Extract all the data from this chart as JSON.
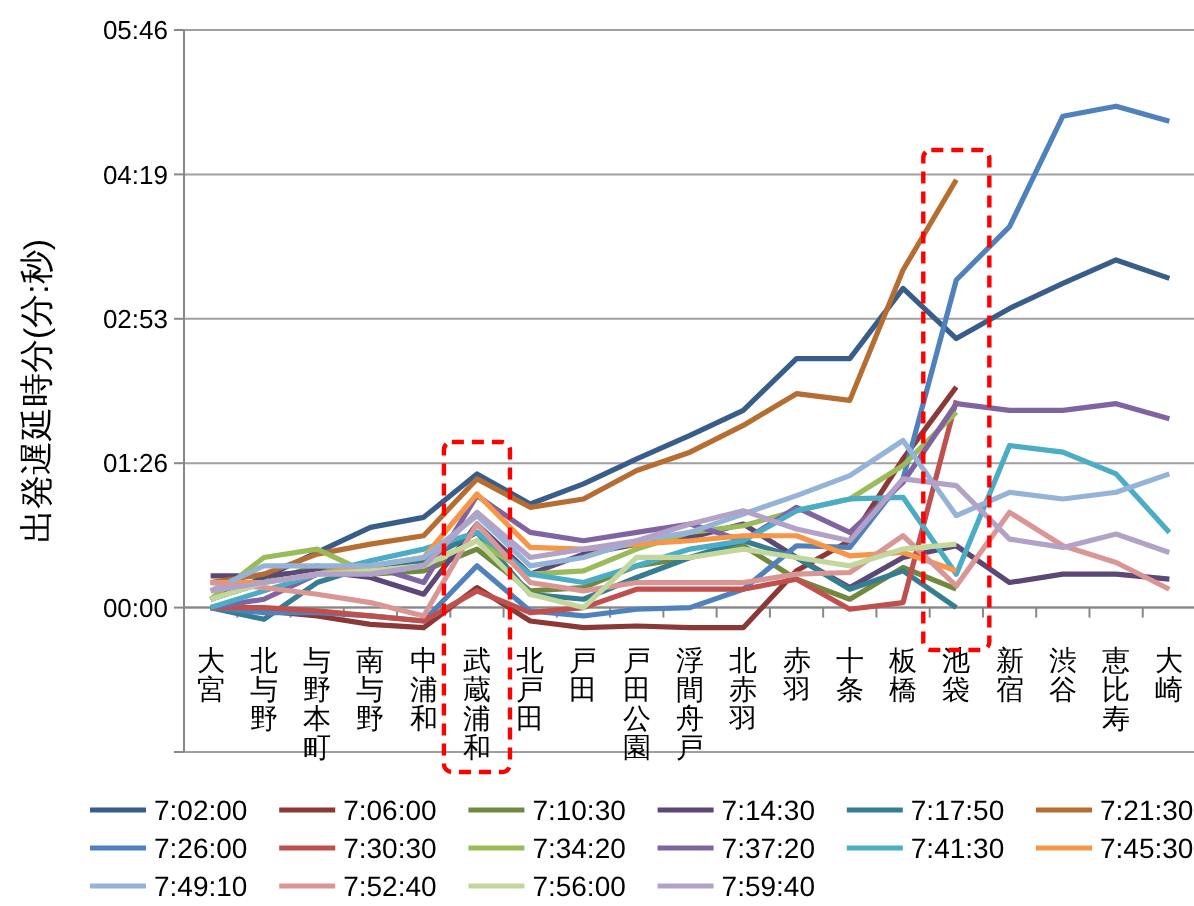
{
  "chart_data": {
    "type": "line",
    "ylabel": "出発遅延時分(分:秒)",
    "categories": [
      "大宮",
      "北与野",
      "与野本町",
      "南与野",
      "中浦和",
      "武蔵浦和",
      "北戸田",
      "戸田",
      "戸田公園",
      "浮間舟戸",
      "北赤羽",
      "赤羽",
      "十条",
      "板橋",
      "池袋",
      "新宿",
      "渋谷",
      "恵比寿",
      "大崎"
    ],
    "ylim": [
      -86.4,
      345.6
    ],
    "yticks": [
      {
        "value": -86.4,
        "label": null
      },
      {
        "value": 0,
        "label": "00:00"
      },
      {
        "value": 86.4,
        "label": "01:26"
      },
      {
        "value": 172.8,
        "label": "02:53"
      },
      {
        "value": 259.2,
        "label": "04:19"
      },
      {
        "value": 345.6,
        "label": "05:46"
      }
    ],
    "grid": "y",
    "legend": "bottom",
    "marker": "none",
    "line_style": "solid",
    "series": [
      {
        "name": "7:02:00",
        "color": "#385d8a",
        "values": [
          5,
          18,
          33,
          48,
          54,
          80,
          62,
          74,
          89,
          103,
          118,
          149,
          149,
          191,
          161,
          179,
          194,
          208,
          197
        ]
      },
      {
        "name": "7:06:00",
        "color": "#8c3836",
        "values": [
          0,
          -2,
          -5,
          -10,
          -12,
          12,
          -8,
          -12,
          -11,
          -12,
          -12,
          22,
          40,
          89,
          132,
          null,
          null,
          null,
          null
        ]
      },
      {
        "name": "7:10:30",
        "color": "#71893f",
        "values": [
          5,
          15,
          25,
          20,
          22,
          35,
          10,
          12,
          25,
          30,
          37,
          17,
          5,
          24,
          11,
          null,
          null,
          null,
          null
        ]
      },
      {
        "name": "7:14:30",
        "color": "#5c4776",
        "values": [
          19,
          19,
          22,
          18,
          8,
          50,
          20,
          32,
          38,
          42,
          50,
          30,
          12,
          30,
          37,
          15,
          20,
          20,
          17
        ]
      },
      {
        "name": "7:17:50",
        "color": "#357d91",
        "values": [
          0,
          -7,
          15,
          25,
          28,
          45,
          8,
          5,
          18,
          30,
          40,
          30,
          11,
          22,
          0,
          null,
          null,
          null,
          null
        ]
      },
      {
        "name": "7:21:30",
        "color": "#b66d31",
        "values": [
          15,
          20,
          32,
          38,
          43,
          77,
          60,
          65,
          82,
          93,
          109,
          128,
          124,
          202,
          256,
          null,
          null,
          null,
          null
        ]
      },
      {
        "name": "7:26:00",
        "color": "#4f81bd",
        "values": [
          0,
          -3,
          -3,
          -5,
          -8,
          25,
          -2,
          -5,
          -1,
          0,
          11,
          37,
          36,
          77,
          196,
          228,
          294,
          300,
          291
        ]
      },
      {
        "name": "7:30:30",
        "color": "#c0504d",
        "values": [
          0,
          0,
          -2,
          -5,
          -8,
          10,
          -3,
          0,
          11,
          11,
          11,
          17,
          -1,
          3,
          124,
          null,
          null,
          null,
          null
        ]
      },
      {
        "name": "7:34:20",
        "color": "#9bbb59",
        "values": [
          5,
          30,
          35,
          20,
          25,
          40,
          20,
          22,
          35,
          45,
          49,
          58,
          65,
          85,
          117,
          null,
          null,
          null,
          null
        ]
      },
      {
        "name": "7:37:20",
        "color": "#8064a2",
        "values": [
          0,
          5,
          20,
          25,
          15,
          67,
          45,
          40,
          45,
          50,
          40,
          60,
          45,
          75,
          122,
          118,
          118,
          122,
          113
        ]
      },
      {
        "name": "7:41:30",
        "color": "#4bacc6",
        "values": [
          0,
          10,
          20,
          28,
          35,
          45,
          20,
          15,
          25,
          35,
          40,
          58,
          65,
          66,
          20,
          97,
          93,
          80,
          45
        ]
      },
      {
        "name": "7:45:30",
        "color": "#f79646",
        "values": [
          15,
          15,
          20,
          25,
          30,
          68,
          36,
          35,
          38,
          40,
          43,
          43,
          31,
          33,
          22,
          null,
          null,
          null,
          null
        ]
      },
      {
        "name": "7:49:10",
        "color": "#95b3d7",
        "values": [
          10,
          25,
          25,
          25,
          30,
          55,
          25,
          30,
          40,
          45,
          56,
          67,
          79,
          100,
          55,
          69,
          65,
          69,
          80
        ]
      },
      {
        "name": "7:52:40",
        "color": "#d99694",
        "values": [
          15,
          12,
          8,
          3,
          -5,
          50,
          15,
          10,
          15,
          15,
          15,
          20,
          21,
          43,
          13,
          57,
          37,
          27,
          11
        ]
      },
      {
        "name": "7:56:00",
        "color": "#c3d69b",
        "values": [
          5,
          15,
          20,
          22,
          25,
          40,
          8,
          0,
          30,
          30,
          35,
          30,
          25,
          35,
          38,
          null,
          null,
          null,
          null
        ]
      },
      {
        "name": "7:59:40",
        "color": "#b3a2c7",
        "values": [
          10,
          15,
          20,
          20,
          25,
          57,
          30,
          35,
          40,
          50,
          58,
          47,
          40,
          77,
          73,
          41,
          36,
          44,
          33
        ]
      }
    ]
  }
}
